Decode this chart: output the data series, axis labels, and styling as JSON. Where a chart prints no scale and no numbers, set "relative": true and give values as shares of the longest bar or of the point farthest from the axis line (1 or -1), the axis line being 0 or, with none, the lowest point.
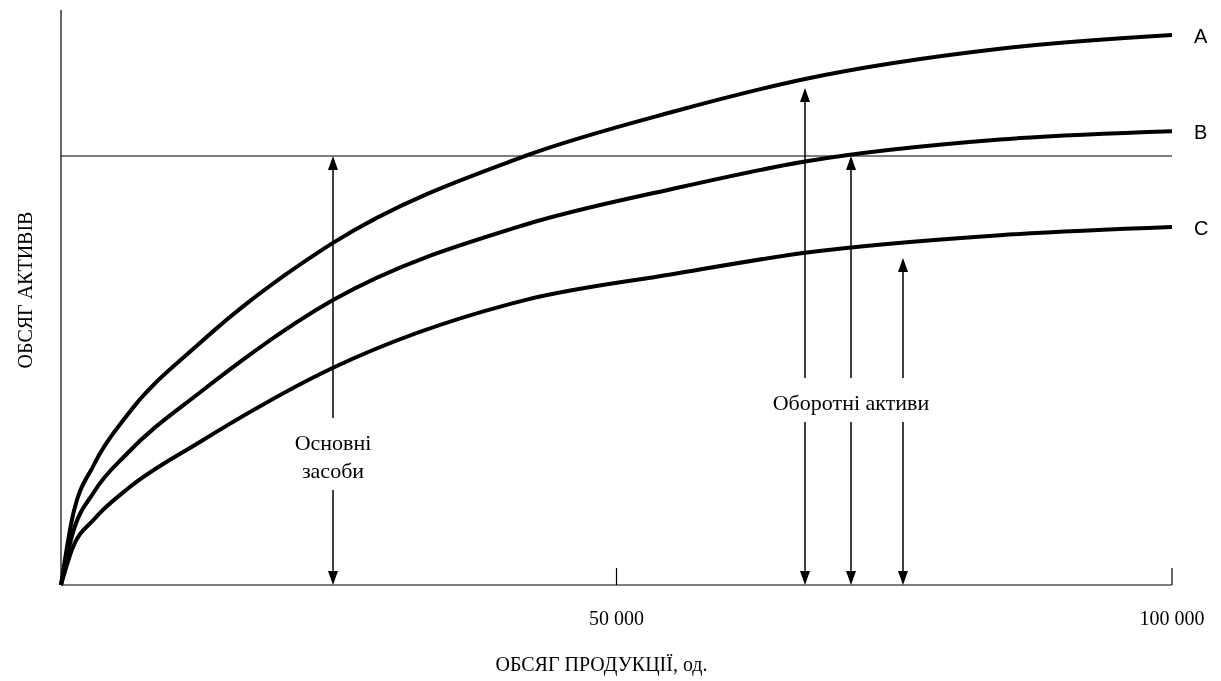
{
  "chart_data": {
    "type": "line",
    "relative": true,
    "xlabel": "ОБСЯГ ПРОДУКЦІЇ, од.",
    "ylabel": "ОБСЯГ АКТИВІВ",
    "xlim": [
      0,
      100000
    ],
    "xticks": [
      {
        "value": 50000,
        "label": "50 000"
      },
      {
        "value": 100000,
        "label": "100 000"
      }
    ],
    "grid": false,
    "legend": false,
    "marker": "none",
    "line_style": "solid",
    "x": [
      0,
      1000,
      3000,
      6000,
      12500,
      24482,
      41764,
      55000,
      66967,
      84518,
      100000
    ],
    "series": [
      {
        "name": "A",
        "color": "#000000",
        "values": [
          0,
          0.12,
          0.22,
          0.31,
          0.44,
          0.622,
          0.78,
          0.86,
          0.92,
          0.975,
          1
        ]
      },
      {
        "name": "B",
        "color": "#000000",
        "values": [
          0,
          0.09,
          0.17,
          0.24,
          0.35,
          0.518,
          0.655,
          0.72,
          0.77,
          0.81,
          0.825
        ]
      },
      {
        "name": "C",
        "color": "#000000",
        "values": [
          0,
          0.065,
          0.12,
          0.175,
          0.26,
          0.395,
          0.518,
          0.565,
          0.604,
          0.636,
          0.651
        ]
      }
    ],
    "ref_lines": [
      {
        "axis": "y",
        "value": 0.78,
        "color": "#000000"
      }
    ],
    "annotations": [
      "Основні засоби",
      "Оборотні активи"
    ]
  }
}
